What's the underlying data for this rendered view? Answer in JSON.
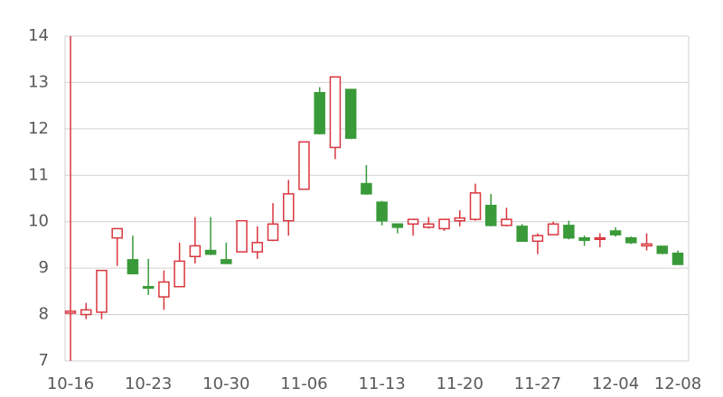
{
  "chart_data": {
    "type": "candlestick",
    "categories": [
      "10-16",
      null,
      null,
      null,
      null,
      "10-23",
      null,
      null,
      null,
      null,
      "10-30",
      null,
      null,
      null,
      null,
      "11-06",
      null,
      null,
      null,
      null,
      "11-13",
      null,
      null,
      null,
      null,
      "11-20",
      null,
      null,
      null,
      null,
      "11-27",
      null,
      null,
      null,
      null,
      "12-04",
      null,
      null,
      null,
      "12-08"
    ],
    "open": [
      8.03,
      8.0,
      8.05,
      9.65,
      9.18,
      8.6,
      8.38,
      8.6,
      9.25,
      9.38,
      9.18,
      9.35,
      9.35,
      9.6,
      10.02,
      10.7,
      12.78,
      11.6,
      12.85,
      10.82,
      10.42,
      9.95,
      9.95,
      9.88,
      9.85,
      10.02,
      10.05,
      10.35,
      9.92,
      9.9,
      9.58,
      9.72,
      9.92,
      9.65,
      9.62,
      9.8,
      9.65,
      9.48,
      9.47,
      9.32
    ],
    "high": [
      14,
      8.25,
      8.95,
      9.85,
      9.7,
      9.2,
      8.95,
      9.55,
      10.1,
      10.1,
      9.55,
      10.02,
      9.9,
      10.4,
      10.9,
      11.72,
      12.9,
      13.12,
      12.85,
      11.22,
      10.45,
      9.95,
      10.05,
      10.1,
      10.05,
      10.25,
      10.82,
      10.6,
      10.3,
      9.95,
      9.75,
      10.0,
      10.02,
      9.7,
      9.75,
      9.88,
      9.68,
      9.75,
      9.48,
      9.38
    ],
    "low": [
      7,
      7.9,
      7.9,
      9.05,
      8.88,
      8.42,
      8.1,
      8.6,
      9.1,
      9.28,
      9.1,
      9.35,
      9.2,
      9.58,
      9.7,
      10.7,
      11.88,
      11.35,
      11.78,
      10.58,
      9.92,
      9.75,
      9.7,
      9.85,
      9.8,
      9.9,
      10.02,
      9.9,
      9.9,
      9.58,
      9.3,
      9.72,
      9.62,
      9.48,
      9.45,
      9.68,
      9.52,
      9.38,
      9.3,
      9.07
    ],
    "close": [
      8.07,
      8.1,
      8.95,
      9.85,
      8.88,
      8.57,
      8.7,
      9.15,
      9.48,
      9.3,
      9.1,
      10.02,
      9.55,
      9.95,
      10.6,
      11.72,
      11.9,
      13.12,
      11.8,
      10.6,
      10.02,
      9.88,
      10.05,
      9.95,
      10.05,
      10.08,
      10.62,
      9.92,
      10.05,
      9.58,
      9.7,
      9.95,
      9.65,
      9.6,
      9.65,
      9.72,
      9.55,
      9.52,
      9.32,
      9.08
    ],
    "up_color": "#d9363e",
    "down_color": "#3a9a3a",
    "ylim": [
      7,
      14
    ],
    "yticks": [
      7,
      8,
      9,
      10,
      11,
      12,
      13,
      14
    ],
    "grid": true
  }
}
